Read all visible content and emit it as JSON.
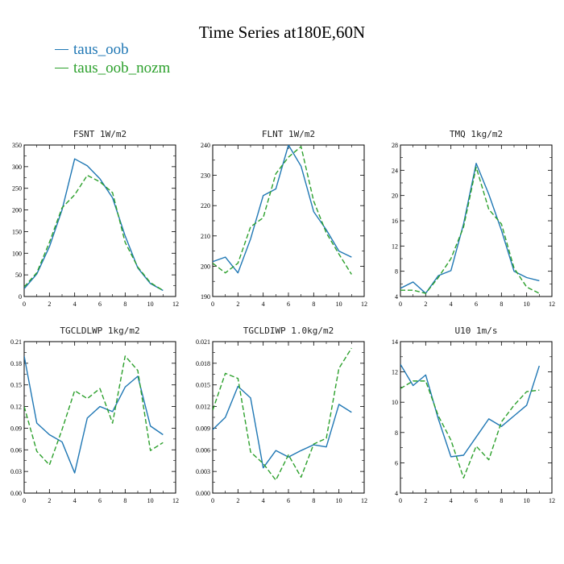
{
  "figure": {
    "title": "Time Series at180E,60N",
    "legend": [
      {
        "name": "taus_oob",
        "color": "#1f77b4",
        "dash": "solid"
      },
      {
        "name": "taus_oob_nozm",
        "color": "#2ca02c",
        "dash": "dashed"
      }
    ]
  },
  "chart_data": [
    {
      "type": "line",
      "title": "FSNT   1W/m2",
      "xlim": [
        0,
        12
      ],
      "ylim": [
        0,
        350
      ],
      "xticks": [
        0,
        2,
        4,
        6,
        8,
        10,
        12
      ],
      "yticks": [
        0,
        50,
        100,
        150,
        200,
        250,
        300,
        350
      ],
      "ytick_labels": [
        "0",
        "50",
        "100",
        "150",
        "200",
        "250",
        "300",
        "350"
      ],
      "x": [
        0,
        1,
        2,
        3,
        4,
        5,
        6,
        7,
        8,
        9,
        10,
        11
      ],
      "series": [
        {
          "name": "taus_oob",
          "values": [
            18,
            52,
            115,
            200,
            318,
            302,
            272,
            228,
            140,
            66,
            30,
            14
          ]
        },
        {
          "name": "taus_oob_nozm",
          "values": [
            22,
            55,
            125,
            205,
            235,
            280,
            265,
            240,
            125,
            68,
            32,
            14
          ]
        }
      ]
    },
    {
      "type": "line",
      "title": "FLNT   1W/m2",
      "xlim": [
        0,
        12
      ],
      "ylim": [
        190,
        240
      ],
      "xticks": [
        0,
        2,
        4,
        6,
        8,
        10,
        12
      ],
      "yticks": [
        190,
        200,
        210,
        220,
        230,
        240
      ],
      "ytick_labels": [
        "190",
        "200",
        "210",
        "220",
        "230",
        "240"
      ],
      "x": [
        0,
        1,
        2,
        3,
        4,
        5,
        6,
        7,
        8,
        9,
        10,
        11
      ],
      "series": [
        {
          "name": "taus_oob",
          "values": [
            201.5,
            203,
            197.8,
            209,
            223.3,
            225.5,
            240,
            233,
            218,
            212,
            205,
            203
          ]
        },
        {
          "name": "taus_oob_nozm",
          "values": [
            201,
            197.8,
            201,
            213,
            216,
            230.5,
            236,
            239.5,
            221.5,
            211,
            204,
            197.3
          ]
        }
      ]
    },
    {
      "type": "line",
      "title": "TMQ   1kg/m2",
      "xlim": [
        0,
        12
      ],
      "ylim": [
        4,
        28
      ],
      "xticks": [
        0,
        2,
        4,
        6,
        8,
        10,
        12
      ],
      "yticks": [
        4,
        8,
        12,
        16,
        20,
        24,
        28
      ],
      "ytick_labels": [
        "4",
        "8",
        "12",
        "16",
        "20",
        "24",
        "28"
      ],
      "x": [
        0,
        1,
        2,
        3,
        4,
        5,
        6,
        7,
        8,
        9,
        10,
        11
      ],
      "series": [
        {
          "name": "taus_oob",
          "values": [
            5.3,
            6.3,
            4.5,
            7.3,
            8.1,
            15.5,
            25.1,
            20.2,
            14.5,
            8,
            7,
            6.5
          ]
        },
        {
          "name": "taus_oob_nozm",
          "values": [
            5,
            5,
            4.5,
            7,
            10,
            15,
            24.5,
            17.8,
            15.5,
            8.5,
            5.5,
            4.5
          ]
        }
      ]
    },
    {
      "type": "line",
      "title": "TGCLDLWP   1kg/m2",
      "xlim": [
        0,
        12
      ],
      "ylim": [
        0,
        0.21
      ],
      "xticks": [
        0,
        2,
        4,
        6,
        8,
        10,
        12
      ],
      "yticks": [
        0,
        0.03,
        0.06,
        0.09,
        0.12,
        0.15,
        0.18,
        0.21
      ],
      "ytick_labels": [
        "0.00",
        "0.03",
        "0.06",
        "0.09",
        "0.12",
        "0.15",
        "0.18",
        "0.21"
      ],
      "x": [
        0,
        1,
        2,
        3,
        4,
        5,
        6,
        7,
        8,
        9,
        10,
        11
      ],
      "series": [
        {
          "name": "taus_oob",
          "values": [
            0.19,
            0.097,
            0.081,
            0.071,
            0.028,
            0.104,
            0.12,
            0.113,
            0.147,
            0.162,
            0.093,
            0.081
          ]
        },
        {
          "name": "taus_oob_nozm",
          "values": [
            0.12,
            0.058,
            0.039,
            0.088,
            0.142,
            0.131,
            0.145,
            0.097,
            0.19,
            0.17,
            0.059,
            0.07
          ]
        }
      ]
    },
    {
      "type": "line",
      "title": "TGCLDIWP   1.0kg/m2",
      "xlim": [
        0,
        12
      ],
      "ylim": [
        0,
        0.021
      ],
      "xticks": [
        0,
        2,
        4,
        6,
        8,
        10,
        12
      ],
      "yticks": [
        0,
        0.003,
        0.006,
        0.009,
        0.012,
        0.015,
        0.018,
        0.021
      ],
      "ytick_labels": [
        "0.000",
        "0.003",
        "0.006",
        "0.009",
        "0.012",
        "0.015",
        "0.018",
        "0.021"
      ],
      "x": [
        0,
        1,
        2,
        3,
        4,
        5,
        6,
        7,
        8,
        9,
        10,
        11
      ],
      "series": [
        {
          "name": "taus_oob",
          "values": [
            0.0088,
            0.0105,
            0.0148,
            0.0132,
            0.0035,
            0.0059,
            0.005,
            0.0059,
            0.0067,
            0.0064,
            0.0123,
            0.0112
          ]
        },
        {
          "name": "taus_oob_nozm",
          "values": [
            0.0115,
            0.0166,
            0.0159,
            0.0057,
            0.0041,
            0.0018,
            0.0053,
            0.0022,
            0.0068,
            0.0076,
            0.0173,
            0.0201
          ]
        }
      ]
    },
    {
      "type": "line",
      "title": "U10   1m/s",
      "xlim": [
        0,
        12
      ],
      "ylim": [
        4,
        14
      ],
      "xticks": [
        0,
        2,
        4,
        6,
        8,
        10,
        12
      ],
      "yticks": [
        4,
        6,
        8,
        10,
        12,
        14
      ],
      "ytick_labels": [
        "4",
        "6",
        "8",
        "10",
        "12",
        "14"
      ],
      "x": [
        0,
        1,
        2,
        3,
        4,
        5,
        6,
        7,
        8,
        9,
        10,
        11
      ],
      "series": [
        {
          "name": "taus_oob",
          "values": [
            12.5,
            11.1,
            11.8,
            8.9,
            6.4,
            6.5,
            7.7,
            8.9,
            8.4,
            9.1,
            9.8,
            12.4
          ]
        },
        {
          "name": "taus_oob_nozm",
          "values": [
            10.9,
            11.4,
            11.4,
            9.1,
            7.5,
            5,
            7.1,
            6.2,
            8.7,
            9.8,
            10.7,
            10.8
          ]
        }
      ]
    }
  ]
}
